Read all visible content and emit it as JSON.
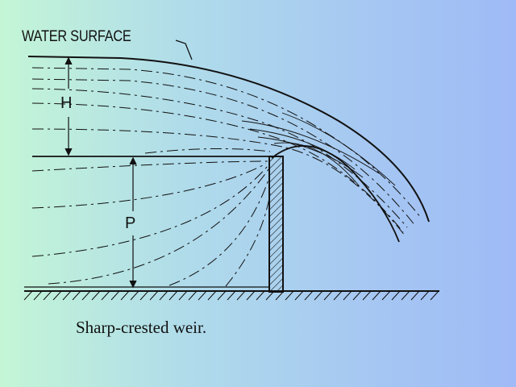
{
  "diagram": {
    "labels": {
      "water_surface": "WATER SURFACE",
      "head": "H",
      "crest_height": "P"
    },
    "caption": "Sharp-crested weir."
  },
  "colors": {
    "ink": "#111111",
    "bg_left": "#c4f6d6",
    "bg_right": "#9fbaf6"
  }
}
